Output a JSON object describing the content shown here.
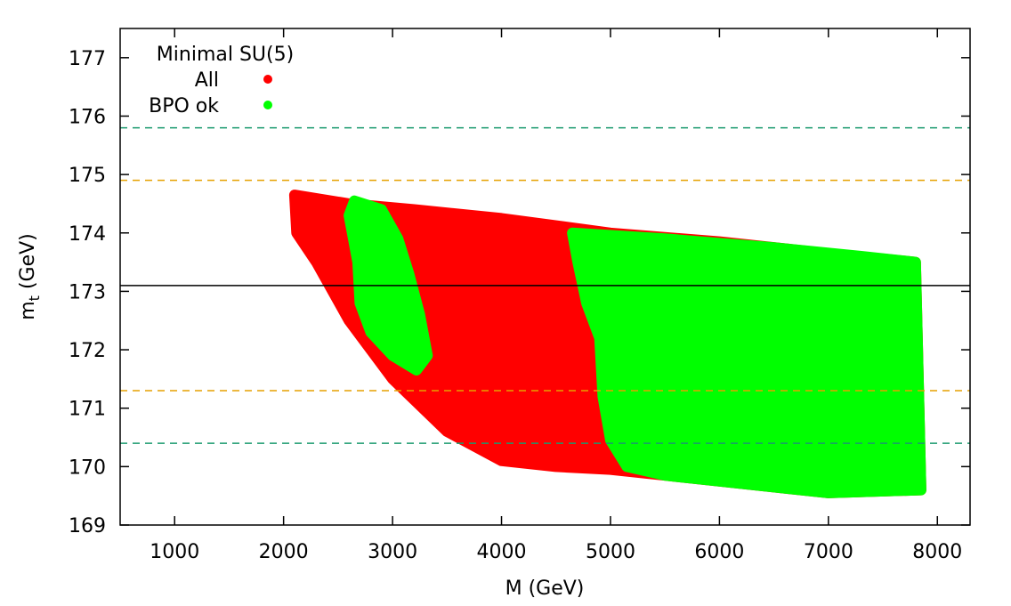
{
  "chart_data": {
    "type": "scatter",
    "title": "",
    "xlabel": "M (GeV)",
    "ylabel_main": "m",
    "ylabel_sub": "t",
    "ylabel_unit": " (GeV)",
    "xlim": [
      500,
      8300
    ],
    "ylim": [
      169,
      177.5
    ],
    "xticks": [
      1000,
      2000,
      3000,
      4000,
      5000,
      6000,
      7000,
      8000
    ],
    "yticks": [
      169,
      170,
      171,
      172,
      173,
      174,
      175,
      176,
      177
    ],
    "legend": {
      "title": "Minimal SU(5)",
      "position": "top-left"
    },
    "series": [
      {
        "name": "All",
        "color": "#ff0000",
        "region": [
          [
            2100,
            174.65
          ],
          [
            2600,
            174.5
          ],
          [
            3200,
            174.4
          ],
          [
            4000,
            174.25
          ],
          [
            5000,
            174.0
          ],
          [
            6000,
            173.85
          ],
          [
            7000,
            173.65
          ],
          [
            7800,
            173.5
          ],
          [
            7850,
            169.6
          ],
          [
            7000,
            169.55
          ],
          [
            6000,
            169.75
          ],
          [
            5500,
            169.85
          ],
          [
            5000,
            169.95
          ],
          [
            4500,
            170.0
          ],
          [
            4000,
            170.1
          ],
          [
            3500,
            170.6
          ],
          [
            3000,
            171.5
          ],
          [
            2600,
            172.5
          ],
          [
            2300,
            173.5
          ],
          [
            2120,
            174.0
          ]
        ]
      },
      {
        "name": "BPO ok",
        "color": "#00ff00",
        "bands": [
          [
            [
              2650,
              174.55
            ],
            [
              2900,
              174.4
            ],
            [
              3050,
              173.9
            ],
            [
              3150,
              173.3
            ],
            [
              3250,
              172.6
            ],
            [
              3320,
              171.9
            ],
            [
              3220,
              171.65
            ],
            [
              3000,
              171.9
            ],
            [
              2800,
              172.3
            ],
            [
              2700,
              172.8
            ],
            [
              2680,
              173.5
            ],
            [
              2600,
              174.3
            ]
          ],
          [
            [
              4650,
              174.0
            ],
            [
              5500,
              173.9
            ],
            [
              6500,
              173.75
            ],
            [
              7300,
              173.6
            ],
            [
              7800,
              173.5
            ],
            [
              7850,
              169.6
            ],
            [
              7000,
              169.55
            ],
            [
              6000,
              169.75
            ],
            [
              5500,
              169.85
            ],
            [
              5150,
              170.0
            ],
            [
              5000,
              170.45
            ],
            [
              4930,
              171.2
            ],
            [
              4900,
              172.2
            ],
            [
              4780,
              172.8
            ],
            [
              4700,
              173.5
            ]
          ]
        ]
      }
    ],
    "reference_lines": [
      {
        "value": 173.1,
        "style": "solid",
        "color": "#000000"
      },
      {
        "value": 174.9,
        "style": "dashed",
        "color": "#e6a100"
      },
      {
        "value": 171.3,
        "style": "dashed",
        "color": "#e6a100"
      },
      {
        "value": 175.8,
        "style": "dashed",
        "color": "#1a9a6e"
      },
      {
        "value": 170.4,
        "style": "dashed",
        "color": "#1a9a6e"
      }
    ]
  }
}
